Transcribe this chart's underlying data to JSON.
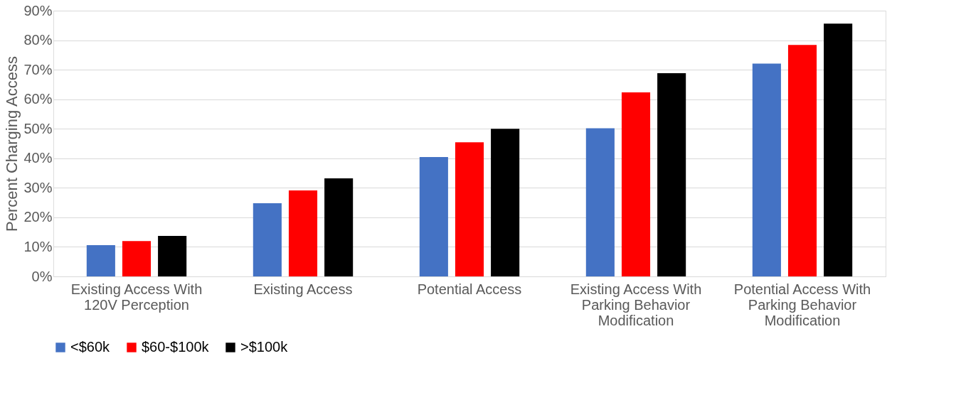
{
  "chart_data": {
    "type": "bar",
    "ylabel": "Percent Charging Access",
    "categories": [
      "Existing Access With 120V Perception",
      "Existing Access",
      "Potential Access",
      "Existing Access With Parking Behavior Modification",
      "Potential Access With Parking Behavior Modification"
    ],
    "series": [
      {
        "name": "<$60k",
        "color": "#4472c4",
        "values": [
          10.6,
          24.8,
          40.4,
          50.2,
          72.1
        ]
      },
      {
        "name": "$60-$100k",
        "color": "#ff0000",
        "values": [
          12.0,
          29.1,
          45.4,
          62.3,
          78.4
        ]
      },
      {
        "name": ">$100k",
        "color": "#000000",
        "values": [
          13.7,
          33.2,
          50.0,
          68.8,
          85.6
        ]
      }
    ],
    "ylim": [
      0,
      90
    ],
    "yticks": [
      {
        "value": 0,
        "label": "0%"
      },
      {
        "value": 10,
        "label": "10%"
      },
      {
        "value": 20,
        "label": "20%"
      },
      {
        "value": 30,
        "label": "30%"
      },
      {
        "value": 40,
        "label": "40%"
      },
      {
        "value": 50,
        "label": "50%"
      },
      {
        "value": 60,
        "label": "60%"
      },
      {
        "value": 70,
        "label": "70%"
      },
      {
        "value": 80,
        "label": "80%"
      },
      {
        "value": 90,
        "label": "90%"
      }
    ],
    "grid": "y",
    "legend": "bottom"
  }
}
